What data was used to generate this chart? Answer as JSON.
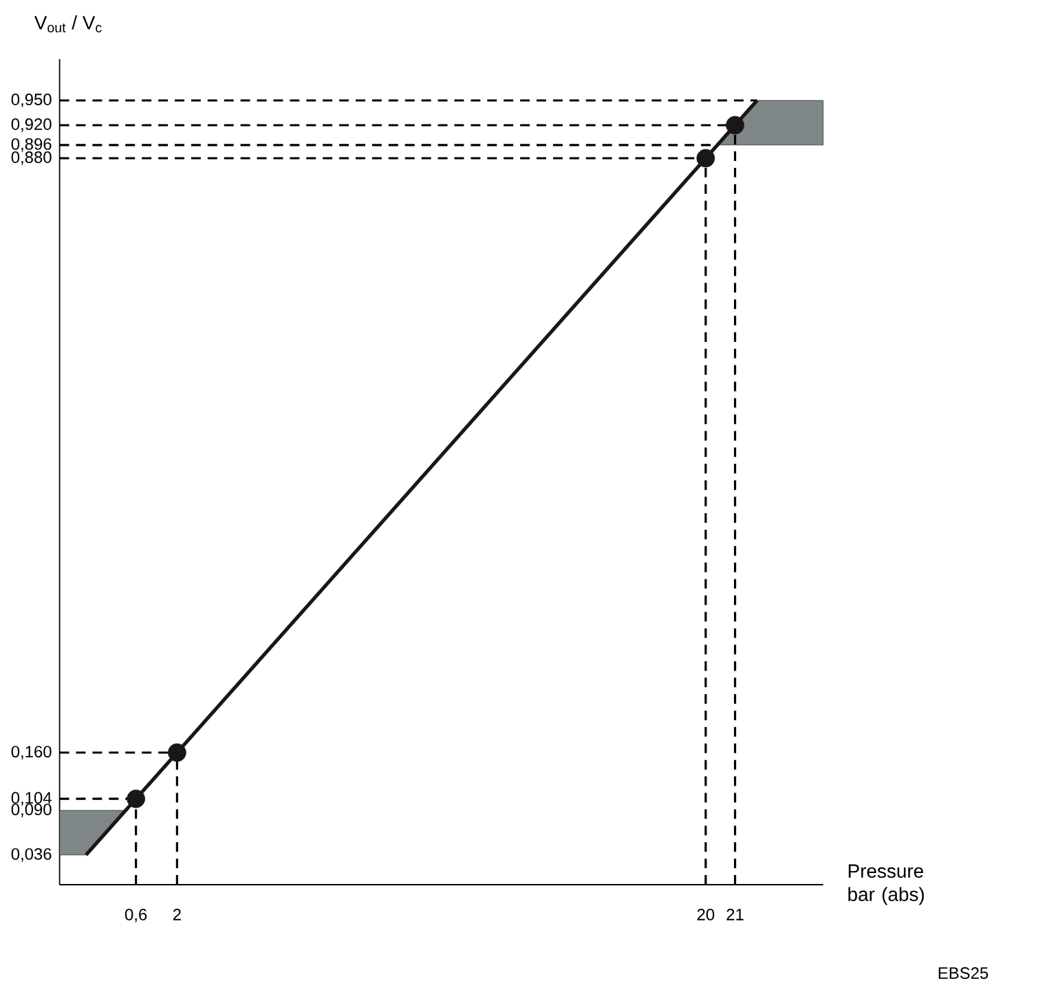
{
  "chart_data": {
    "type": "line",
    "xlabel": "Pressure bar (abs)",
    "ylabel": "V$_{out}$ / V$_{c}$",
    "annotations": [
      "EBS25"
    ],
    "xlim": [
      -2,
      24
    ],
    "ylim": [
      0,
      1
    ],
    "xticks": [
      {
        "value": 0.6,
        "label": "0,6"
      },
      2,
      20,
      21
    ],
    "yticks": [
      {
        "value": 0.036,
        "label": "0,036"
      },
      {
        "value": 0.09,
        "label": "0,090"
      },
      {
        "value": 0.104,
        "label": "0,104"
      },
      {
        "value": 0.16,
        "label": "0,160"
      },
      {
        "value": 0.88,
        "label": "0,880"
      },
      {
        "value": 0.896,
        "label": "0,896"
      },
      {
        "value": 0.92,
        "label": "0,920"
      },
      {
        "value": 0.95,
        "label": "0,950"
      }
    ],
    "series": [
      {
        "color": "#1a1716",
        "x": [
          -2,
          -1.1,
          0.25,
          20,
          20.4,
          21.75,
          24
        ],
        "values": [
          null,
          0.036,
          0.09,
          0.88,
          0.896,
          0.95,
          null
        ],
        "lower": [
          0.036,
          0.036,
          0.09,
          null,
          0.896,
          0.896,
          0.896
        ],
        "upper": [
          0.09,
          0.09,
          0.09,
          null,
          0.896,
          0.95,
          0.95
        ]
      },
      {
        "type": "scatter",
        "color": "#1a1716",
        "marker": "circle",
        "x": [
          0.6,
          2,
          20,
          21
        ],
        "values": [
          0.104,
          0.16,
          0.88,
          0.92
        ]
      }
    ],
    "ref_lines": [
      {
        "axis": "y",
        "value": 0.95,
        "line_style": "dashed"
      },
      {
        "axis": "y",
        "value": 0.92,
        "line_style": "dashed"
      },
      {
        "axis": "y",
        "value": 0.896,
        "line_style": "dashed"
      },
      {
        "axis": "y",
        "value": 0.88,
        "line_style": "dashed"
      },
      {
        "axis": "y",
        "value": 0.16,
        "line_style": "dashed"
      },
      {
        "axis": "y",
        "value": 0.104,
        "line_style": "dashed"
      },
      {
        "axis": "x",
        "value": 0.6,
        "line_style": "dashed"
      },
      {
        "axis": "x",
        "value": 2,
        "line_style": "dashed"
      },
      {
        "axis": "x",
        "value": 20,
        "line_style": "dashed"
      },
      {
        "axis": "x",
        "value": 21,
        "line_style": "dashed"
      }
    ],
    "grid": false
  }
}
